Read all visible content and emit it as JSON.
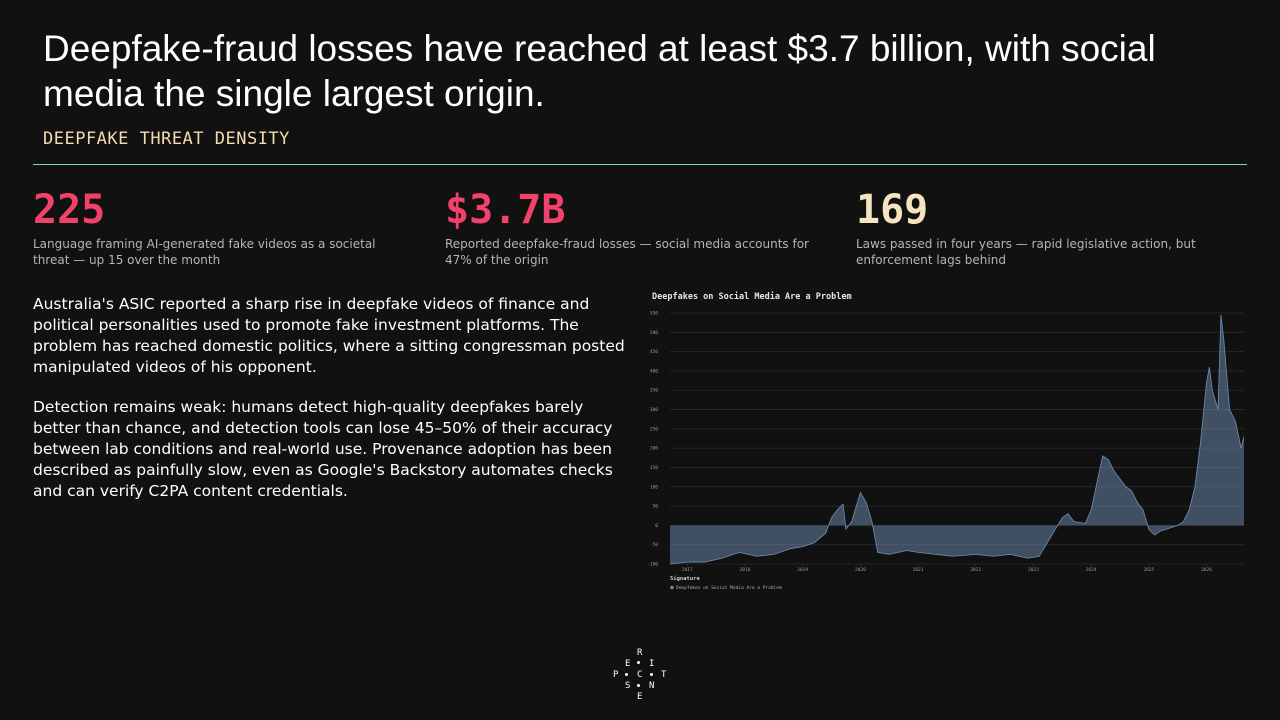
{
  "header": {
    "title": "Deepfake-fraud losses have reached at least $3.7 billion, with social media the single largest origin.",
    "subtitle": "DEEPFAKE THREAT DENSITY"
  },
  "stats": [
    {
      "value": "225",
      "text": "Language framing AI-generated fake videos as a societal threat — up 15 over the month"
    },
    {
      "value": "$3.7B",
      "text": "Reported deepfake-fraud losses — social media accounts for 47% of the origin"
    },
    {
      "value": "169",
      "text": "Laws passed in four years — rapid legislative action, but enforcement lags behind"
    }
  ],
  "paragraphs": [
    "Australia's ASIC reported a sharp rise in deepfake videos of finance and political personalities used to promote fake investment platforms. The problem has reached domestic politics, where a sitting congressman posted manipulated videos of his opponent.",
    "Detection remains weak: humans detect high-quality deepfakes barely better than chance, and detection tools can lose 45–50% of their accuracy between lab conditions and real-world use. Provenance adoption has been described as painfully slow, even as Google's Backstory automates checks and can verify C2PA content credentials."
  ],
  "logo": [
    "R",
    "E",
    "I",
    "P",
    "C",
    "T",
    "S",
    "N",
    "E"
  ],
  "chart_data": {
    "type": "area",
    "title": "Deepfakes on Social Media Are a Problem",
    "legend_title": "Signature",
    "series": [
      {
        "name": "Deepfakes on Social Media Are a Problem",
        "color": "#6f8fb3",
        "x": [
          2016.7,
          2017.0,
          2017.3,
          2017.6,
          2017.9,
          2018.2,
          2018.5,
          2018.8,
          2019.0,
          2019.2,
          2019.4,
          2019.5,
          2019.6,
          2019.7,
          2019.75,
          2019.85,
          2019.95,
          2020.0,
          2020.1,
          2020.2,
          2020.3,
          2020.5,
          2020.8,
          2021.0,
          2021.3,
          2021.6,
          2022.0,
          2022.3,
          2022.6,
          2022.9,
          2023.1,
          2023.3,
          2023.5,
          2023.6,
          2023.7,
          2023.9,
          2024.0,
          2024.1,
          2024.2,
          2024.3,
          2024.4,
          2024.5,
          2024.6,
          2024.7,
          2024.8,
          2024.9,
          2025.0,
          2025.1,
          2025.2,
          2025.3,
          2025.5,
          2025.6,
          2025.7,
          2025.8,
          2025.9,
          2026.0,
          2026.05,
          2026.1,
          2026.2,
          2026.25,
          2026.3,
          2026.4,
          2026.5,
          2026.6,
          2026.65
        ],
        "values": [
          -100,
          -95,
          -95,
          -85,
          -70,
          -80,
          -75,
          -60,
          -55,
          -45,
          -20,
          20,
          40,
          55,
          -10,
          10,
          60,
          85,
          60,
          10,
          -70,
          -75,
          -65,
          -70,
          -75,
          -80,
          -75,
          -80,
          -75,
          -85,
          -80,
          -30,
          20,
          30,
          10,
          5,
          40,
          110,
          180,
          170,
          140,
          120,
          100,
          90,
          60,
          40,
          -10,
          -25,
          -15,
          -10,
          0,
          10,
          40,
          100,
          220,
          370,
          410,
          350,
          300,
          545,
          480,
          300,
          270,
          200,
          230
        ]
      }
    ],
    "xlim": [
      2016.7,
      2026.65
    ],
    "xticks": [
      2017,
      2018,
      2019,
      2020,
      2021,
      2022,
      2023,
      2024,
      2025,
      2026
    ],
    "ylim": [
      -100,
      550
    ],
    "yticks": [
      -100,
      -50,
      0,
      50,
      100,
      150,
      200,
      250,
      300,
      350,
      400,
      450,
      500,
      550
    ],
    "grid": true
  }
}
